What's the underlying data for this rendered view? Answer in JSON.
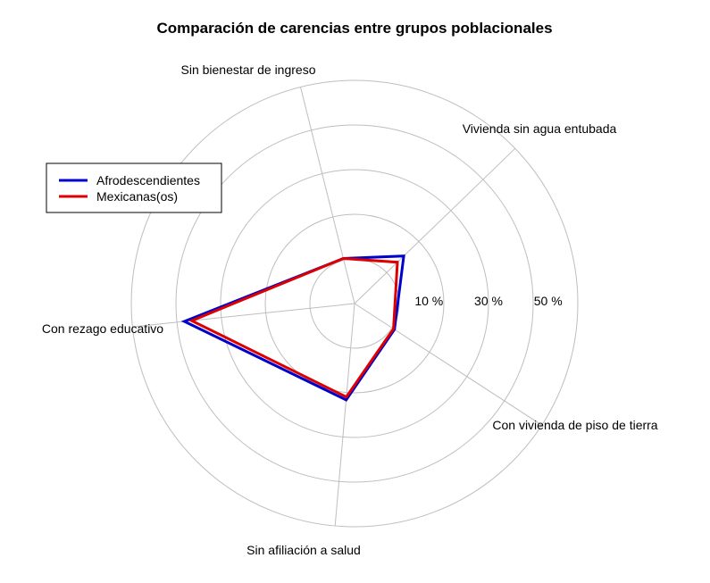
{
  "chart_data": {
    "type": "radar",
    "title": "Comparación de carencias entre grupos poblacionales",
    "axes": [
      "Sin bienestar de ingreso",
      "Vivienda sin agua entubada",
      "Con vivienda de piso de tierra",
      "Sin afiliación a salud",
      "Con rezago educativo"
    ],
    "radial_ticks": [
      {
        "value": 10,
        "label": "10 %"
      },
      {
        "value": 30,
        "label": "30 %"
      },
      {
        "value": 50,
        "label": "50 %"
      }
    ],
    "series": [
      {
        "name": "Afrodescendientes",
        "color": "#0000cc",
        "values": [
          0.6,
          8,
          1.0,
          17.5,
          42.5
        ]
      },
      {
        "name": "Mexicanas(os)",
        "color": "#dd0000",
        "values": [
          0.6,
          5,
          0.6,
          16.5,
          40.0
        ]
      }
    ],
    "legend": "top-left",
    "grid": true
  }
}
